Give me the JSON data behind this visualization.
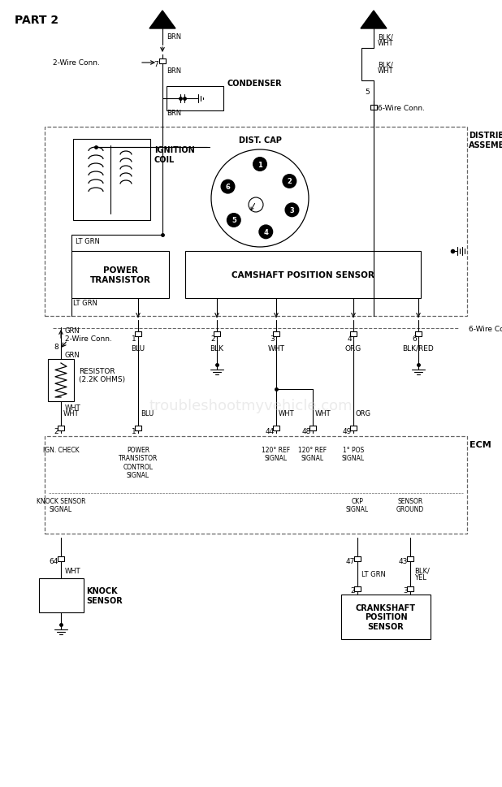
{
  "bg_color": "#ffffff",
  "title": "PART 2",
  "watermark": "troubleshootmyvehicle.com",
  "ecm_signals": {
    "ign_check": "IGN. CHECK",
    "power_transistor_ctrl": "POWER\nTRANSISTOR\nCONTROL\nSIGNAL",
    "ref120_1": "120° REF\nSIGNAL",
    "ref120_2": "120° REF\nSIGNAL",
    "pos1": "1° POS\nSIGNAL",
    "knock_sensor_sig": "KNOCK SENSOR\nSIGNAL",
    "ckp_signal": "CKP\nSIGNAL",
    "sensor_ground": "SENSOR\nGROUND"
  }
}
